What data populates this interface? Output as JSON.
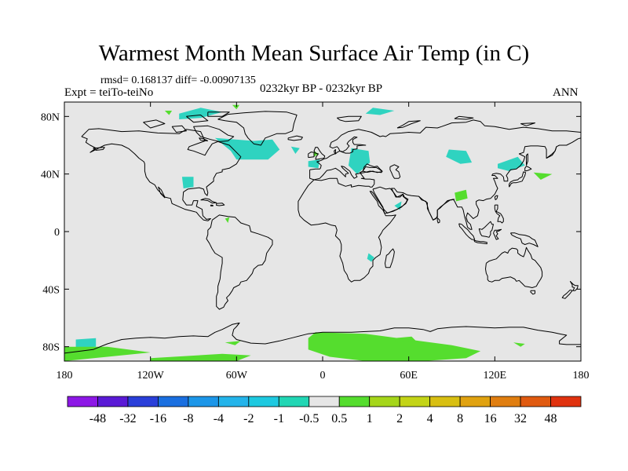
{
  "title": "Warmest Month Mean Surface Air Temp (in C)",
  "stats": "rmsd= 0.168137 diff= -0.00907135",
  "experiment": "Expt = teiTo-teiNo",
  "period": "0232kyr BP - 0232kyr BP",
  "season": "ANN",
  "map": {
    "projection": "cylindrical-equidistant",
    "lon_range": [
      -180,
      180
    ],
    "lat_range": [
      -90,
      90
    ],
    "background_color": "#e6e6e6",
    "x_ticks": [
      {
        "value": -180,
        "label": "180"
      },
      {
        "value": -120,
        "label": "120W"
      },
      {
        "value": -60,
        "label": "60W"
      },
      {
        "value": 0,
        "label": "0"
      },
      {
        "value": 60,
        "label": "60E"
      },
      {
        "value": 120,
        "label": "120E"
      },
      {
        "value": 180,
        "label": "180"
      }
    ],
    "y_ticks": [
      {
        "value": 80,
        "label": "80N"
      },
      {
        "value": 40,
        "label": "40N"
      },
      {
        "value": 0,
        "label": "0"
      },
      {
        "value": -40,
        "label": "40S"
      },
      {
        "value": -80,
        "label": "80S"
      }
    ],
    "anomaly_regions": [
      {
        "bin": "-1 to -0.5",
        "color": "#2fd3c0",
        "points": [
          [
            -75,
            65
          ],
          [
            -64,
            56
          ],
          [
            -60,
            50
          ],
          [
            -38,
            50
          ],
          [
            -30,
            57
          ],
          [
            -35,
            64
          ],
          [
            -48,
            63
          ]
        ]
      },
      {
        "bin": "-1 to -0.5",
        "color": "#2fd3c0",
        "points": [
          [
            -100,
            82
          ],
          [
            -85,
            86
          ],
          [
            -70,
            83
          ],
          [
            -85,
            79
          ],
          [
            -100,
            78
          ]
        ]
      },
      {
        "bin": "-1 to -0.5",
        "color": "#2fd3c0",
        "points": [
          [
            -98,
            38
          ],
          [
            -90,
            38
          ],
          [
            -90,
            31
          ],
          [
            -97,
            30
          ]
        ]
      },
      {
        "bin": "-1 to -0.5",
        "color": "#2fd3c0",
        "points": [
          [
            -22,
            59
          ],
          [
            -16,
            58
          ],
          [
            -19,
            54
          ]
        ]
      },
      {
        "bin": "-1 to -0.5",
        "color": "#2fd3c0",
        "points": [
          [
            -10,
            49
          ],
          [
            -2,
            50
          ],
          [
            -3,
            44
          ],
          [
            -10,
            45
          ]
        ]
      },
      {
        "bin": "-1 to -0.5",
        "color": "#2fd3c0",
        "points": [
          [
            20,
            58
          ],
          [
            32,
            56
          ],
          [
            33,
            48
          ],
          [
            24,
            40
          ],
          [
            18,
            46
          ]
        ]
      },
      {
        "bin": "-1 to -0.5",
        "color": "#2fd3c0",
        "points": [
          [
            35,
            86
          ],
          [
            50,
            84
          ],
          [
            40,
            81
          ],
          [
            30,
            82
          ]
        ]
      },
      {
        "bin": "-1 to -0.5",
        "color": "#2fd3c0",
        "points": [
          [
            88,
            57
          ],
          [
            100,
            56
          ],
          [
            104,
            48
          ],
          [
            96,
            47
          ],
          [
            86,
            52
          ]
        ]
      },
      {
        "bin": "-1 to -0.5",
        "color": "#2fd3c0",
        "points": [
          [
            122,
            47
          ],
          [
            136,
            52
          ],
          [
            141,
            46
          ],
          [
            130,
            42
          ],
          [
            122,
            44
          ]
        ]
      },
      {
        "bin": "-1 to -0.5",
        "color": "#2fd3c0",
        "points": [
          [
            50,
            18
          ],
          [
            55,
            21
          ],
          [
            54,
            15
          ]
        ]
      },
      {
        "bin": "-1 to -0.5",
        "color": "#2fd3c0",
        "points": [
          [
            32,
            -15
          ],
          [
            36,
            -18
          ],
          [
            34,
            -21
          ],
          [
            31,
            -19
          ]
        ]
      },
      {
        "bin": "-1 to -0.5",
        "color": "#2fd3c0",
        "points": [
          [
            -172,
            -75
          ],
          [
            -158,
            -74
          ],
          [
            -158,
            -80
          ],
          [
            -172,
            -81
          ]
        ]
      },
      {
        "bin": "0.5 to 1",
        "color": "#55dd2e",
        "points": [
          [
            -5,
            -70
          ],
          [
            30,
            -71
          ],
          [
            60,
            -75
          ],
          [
            90,
            -79
          ],
          [
            110,
            -83
          ],
          [
            100,
            -88
          ],
          [
            70,
            -90
          ],
          [
            30,
            -90
          ],
          [
            5,
            -87
          ],
          [
            -10,
            -82
          ],
          [
            -10,
            -74
          ]
        ]
      },
      {
        "bin": "0.5 to 1",
        "color": "#55dd2e",
        "points": [
          [
            -180,
            -80
          ],
          [
            -150,
            -80
          ],
          [
            -120,
            -84
          ],
          [
            -180,
            -90
          ]
        ]
      },
      {
        "bin": "0.5 to 1",
        "color": "#55dd2e",
        "points": [
          [
            -120,
            -88
          ],
          [
            -70,
            -85
          ],
          [
            -50,
            -86
          ],
          [
            -60,
            -90
          ],
          [
            -120,
            -90
          ]
        ]
      },
      {
        "bin": "0.5 to 1",
        "color": "#55dd2e",
        "points": [
          [
            50,
            -74
          ],
          [
            62,
            -73
          ],
          [
            65,
            -76
          ],
          [
            51,
            -77
          ]
        ]
      },
      {
        "bin": "0.5 to 1",
        "color": "#55dd2e",
        "points": [
          [
            -68,
            -77
          ],
          [
            -57,
            -76
          ],
          [
            -61,
            -79
          ]
        ]
      },
      {
        "bin": "0.5 to 1",
        "color": "#55dd2e",
        "points": [
          [
            133,
            -77
          ],
          [
            141,
            -78
          ],
          [
            138,
            -80
          ]
        ]
      },
      {
        "bin": "0.5 to 1",
        "color": "#55dd2e",
        "points": [
          [
            92,
            27
          ],
          [
            100,
            29
          ],
          [
            101,
            23
          ],
          [
            93,
            21
          ]
        ]
      },
      {
        "bin": "0.5 to 1",
        "color": "#55dd2e",
        "points": [
          [
            147,
            41
          ],
          [
            160,
            40
          ],
          [
            152,
            36
          ]
        ]
      },
      {
        "bin": "0.5 to 1",
        "color": "#55dd2e",
        "points": [
          [
            -6,
            56
          ],
          [
            -3,
            54
          ],
          [
            -6,
            52
          ]
        ]
      },
      {
        "bin": "0.5 to 1",
        "color": "#55dd2e",
        "points": [
          [
            -63,
            88
          ],
          [
            -58,
            88
          ],
          [
            -60,
            85
          ]
        ]
      },
      {
        "bin": "0.5 to 1",
        "color": "#55dd2e",
        "points": [
          [
            -110,
            84
          ],
          [
            -105,
            84
          ],
          [
            -107,
            81
          ]
        ]
      },
      {
        "bin": "0.5 to 1",
        "color": "#55dd2e",
        "points": [
          [
            -68,
            9
          ],
          [
            -65,
            10
          ],
          [
            -66,
            6
          ]
        ]
      }
    ]
  },
  "colorbar": {
    "colors": [
      "#8d18e6",
      "#5a1ad6",
      "#2a3fd9",
      "#1a6fe0",
      "#1c96e8",
      "#24b4ea",
      "#1ec9e0",
      "#21d6b4",
      "#e6e6e6",
      "#55dd2e",
      "#a5d61a",
      "#c3d417",
      "#d8bf12",
      "#e0a210",
      "#e07e10",
      "#e05a10",
      "#e0320f"
    ],
    "labels": [
      "-48",
      "-32",
      "-16",
      "-8",
      "-4",
      "-2",
      "-1",
      "-0.5",
      "0.5",
      "1",
      "2",
      "4",
      "8",
      "16",
      "32",
      "48"
    ]
  }
}
